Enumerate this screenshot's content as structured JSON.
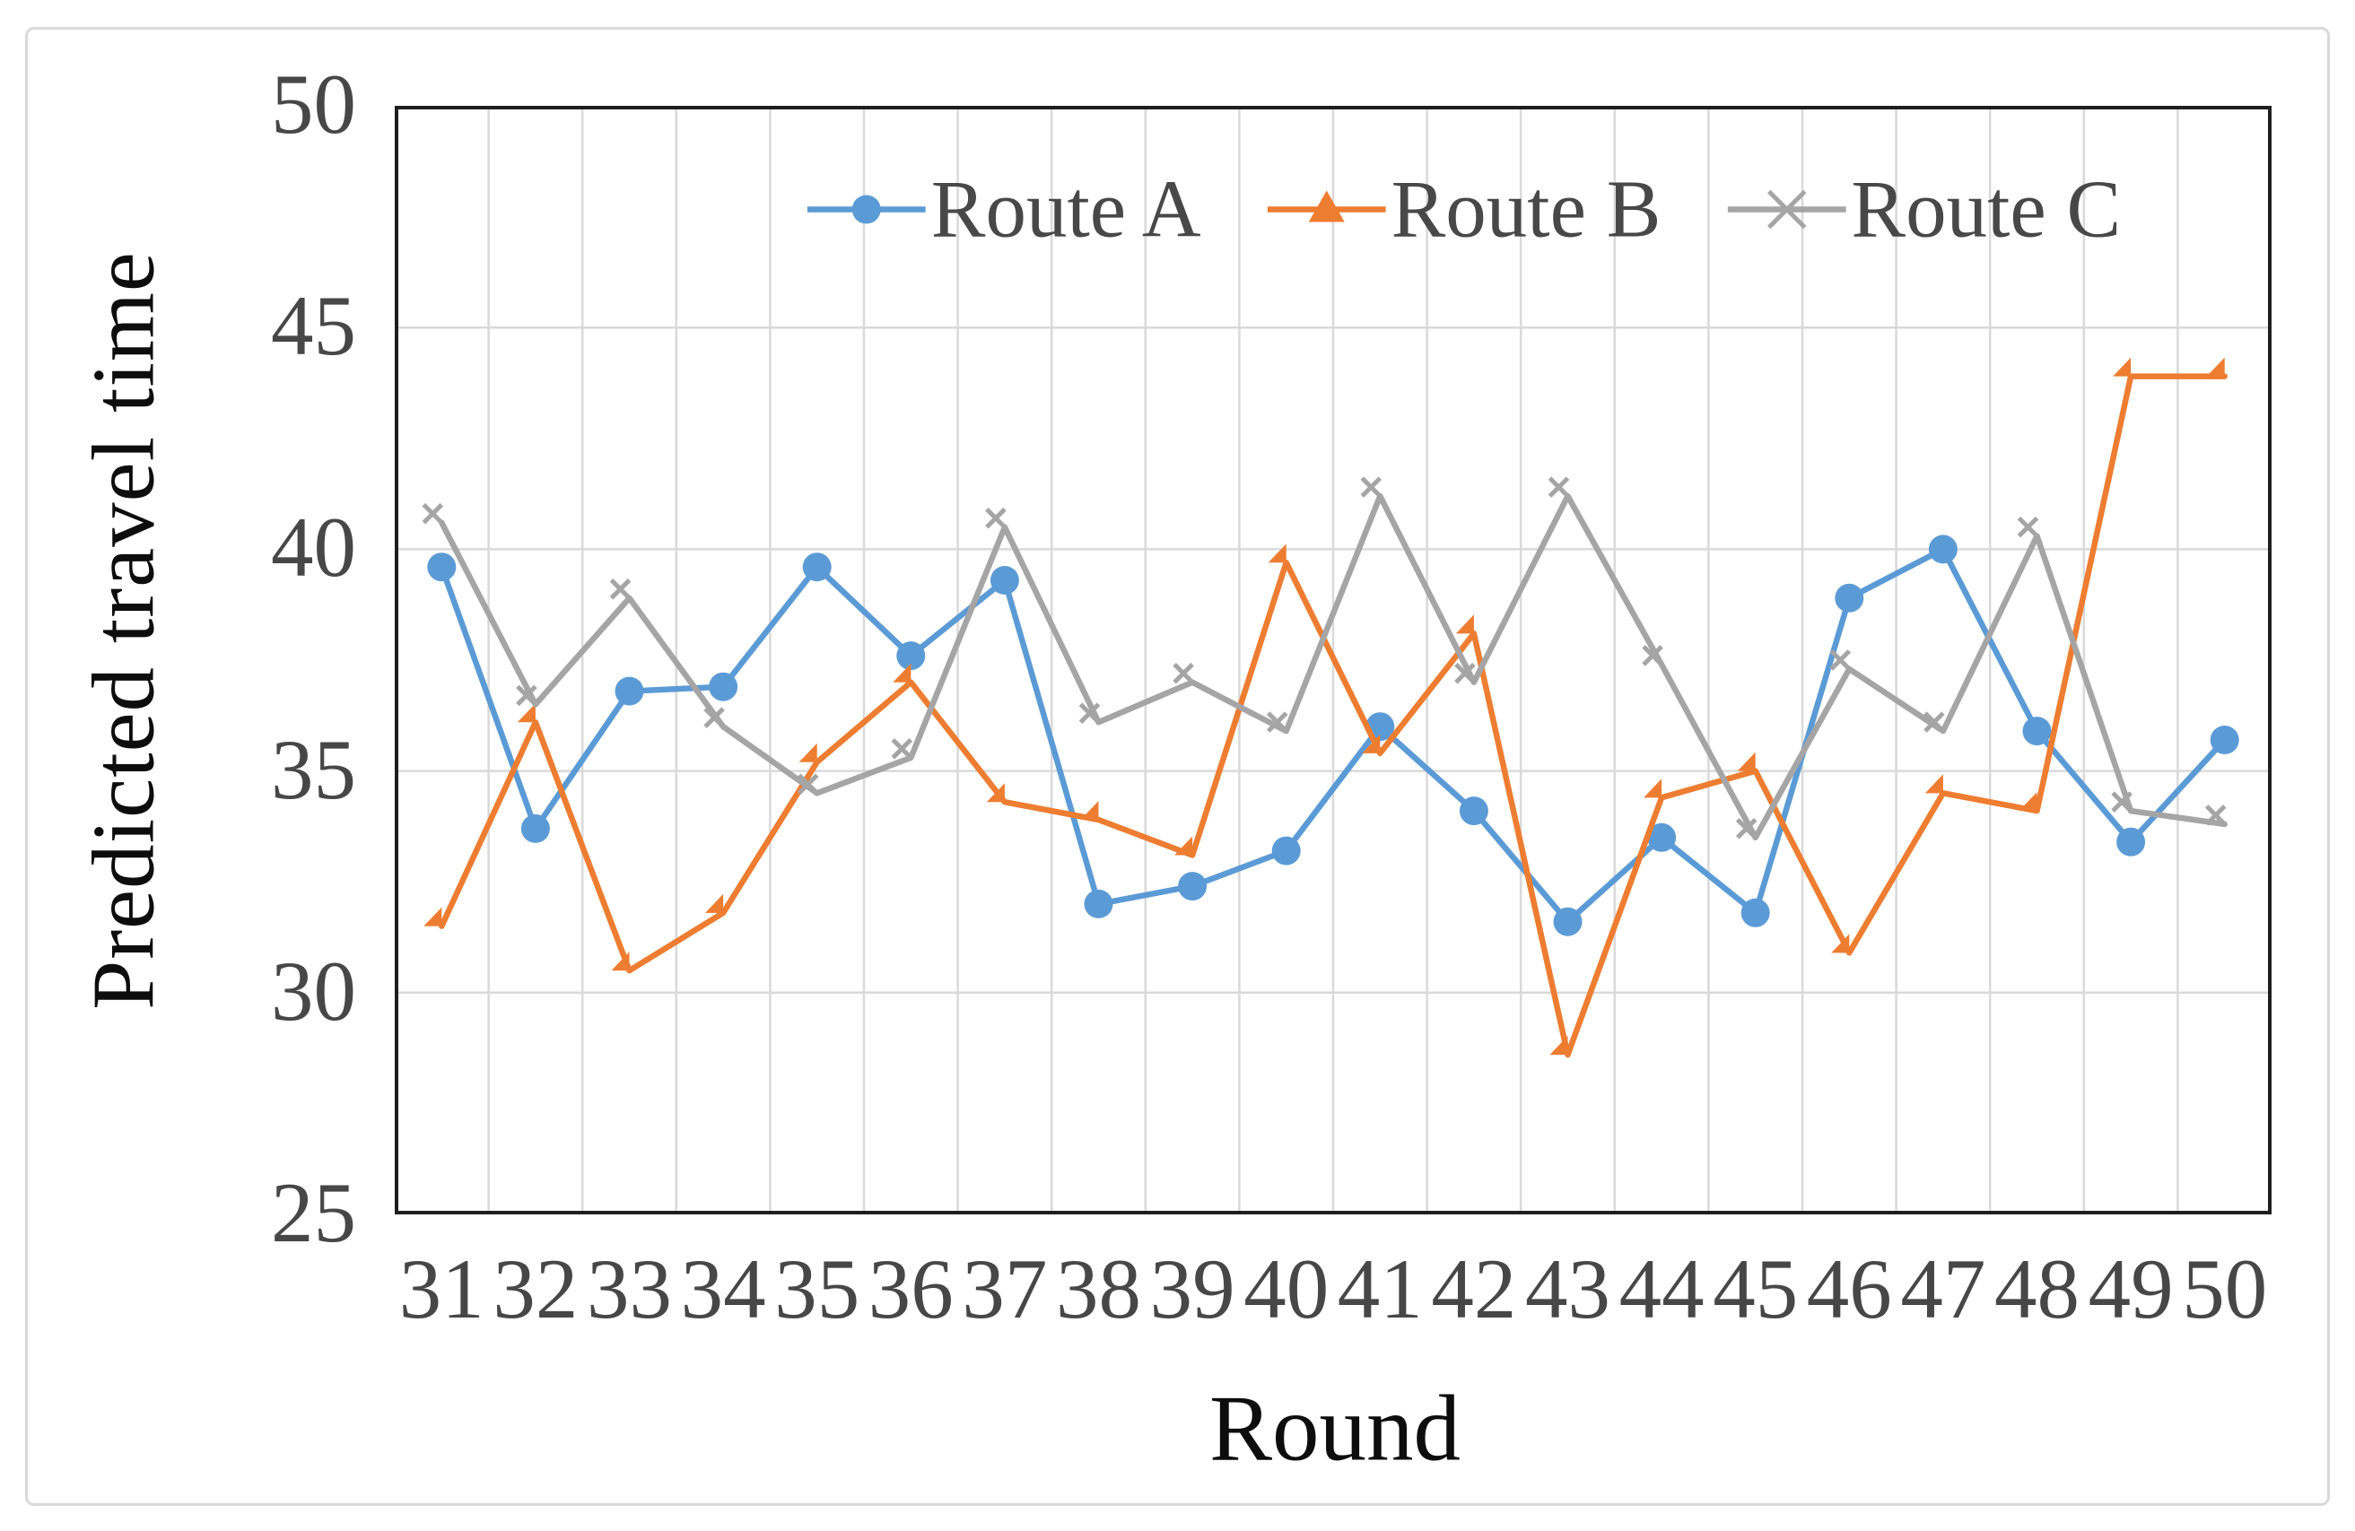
{
  "figure": {
    "background_color": "#ffffff",
    "frame_border_color": "#d9d9d9",
    "plot_border_color": "#1f1f1f",
    "gridline_color": "#d9d9d9",
    "tick_label_color": "#474747",
    "axis_title_color": "#0d0d0d"
  },
  "chart_data": {
    "type": "line",
    "title": "",
    "xlabel": "Round",
    "ylabel": "Predicted travel time",
    "x": [
      31,
      32,
      33,
      34,
      35,
      36,
      37,
      38,
      39,
      40,
      41,
      42,
      43,
      44,
      45,
      46,
      47,
      48,
      49,
      50
    ],
    "ylim": [
      25,
      50
    ],
    "y_ticks": [
      50,
      45,
      40,
      35,
      30,
      25
    ],
    "grid": true,
    "legend_position": "top-inside",
    "series": [
      {
        "name": "Route A",
        "color": "#5B9BD5",
        "marker": "circle",
        "values": [
          39.6,
          33.7,
          36.8,
          36.9,
          39.6,
          37.6,
          39.3,
          32.0,
          32.4,
          33.2,
          36.0,
          34.1,
          31.6,
          33.5,
          31.8,
          38.9,
          40.0,
          35.9,
          33.4,
          35.7
        ]
      },
      {
        "name": "Route B",
        "color": "#ED7D31",
        "marker": "triangle",
        "values": [
          31.5,
          36.1,
          30.5,
          31.8,
          35.2,
          37.0,
          34.3,
          33.9,
          33.1,
          39.7,
          35.4,
          38.1,
          28.6,
          34.4,
          35.0,
          30.9,
          34.5,
          34.1,
          43.9,
          43.9
        ]
      },
      {
        "name": "Route C",
        "color": "#A5A5A5",
        "marker": "x",
        "values": [
          40.6,
          36.5,
          38.9,
          36.0,
          34.5,
          35.3,
          40.5,
          36.1,
          37.0,
          35.9,
          41.2,
          37.0,
          41.2,
          37.4,
          33.5,
          37.3,
          35.9,
          40.3,
          34.1,
          33.8
        ]
      }
    ]
  }
}
